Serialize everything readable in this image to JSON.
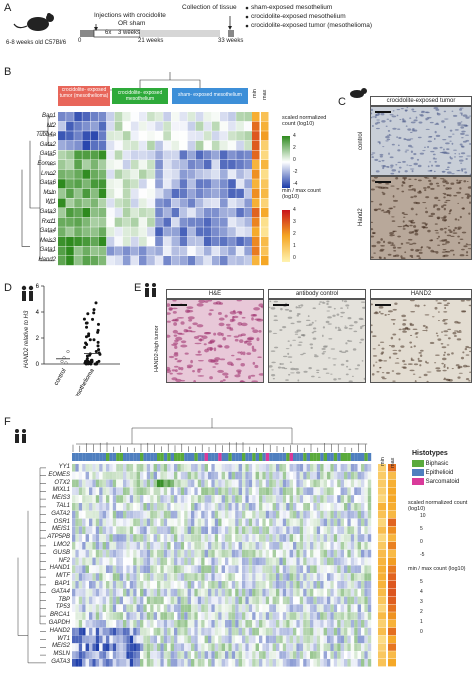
{
  "panels": {
    "A": {
      "label": "A",
      "age": "6-8 weeks old C57Bl/6",
      "injections": "Injections with crocidolite",
      "or_sham": "OR sham",
      "times": [
        "0",
        "6x",
        "3 weeks",
        "21 weeks",
        "33 weeks"
      ],
      "collection": "Collection of tissue",
      "outcomes": [
        "sham-exposed mesothelium",
        "crocidolite-exposed mesothelium",
        "crocidolite-exposed tumor (mesothelioma)"
      ]
    },
    "B": {
      "label": "B",
      "groups": [
        {
          "name": "crocidolite- exposed tumor (mesothelioma)",
          "color": "#e8665a"
        },
        {
          "name": "crocidolite- exposed mesothelium",
          "color": "#2eaa3a"
        },
        {
          "name": "sham- exposed mesothelium",
          "color": "#3d8fd8"
        }
      ],
      "minmax": [
        "min",
        "max"
      ],
      "legend1_title": "scaled normalized count (log10)",
      "legend1_ticks": [
        "4",
        "2",
        "0",
        "-2",
        "-4"
      ],
      "legend2_title": "min / max count (log10)",
      "legend2_ticks": [
        "4",
        "3",
        "2",
        "1",
        "0"
      ]
    },
    "C": {
      "label": "C",
      "title": "crocidolite-exposed tumor",
      "rows": [
        "control",
        "Hand2"
      ]
    },
    "D": {
      "label": "D",
      "ylabel": "HAND2 relative to H3",
      "yticks": [
        "6",
        "4",
        "2",
        "0"
      ],
      "xcats": [
        "control",
        "mesothelioma"
      ]
    },
    "E": {
      "label": "E",
      "titles": [
        "H&E",
        "antibody control",
        "HAND2"
      ],
      "side": "HAND2-high tumor"
    },
    "F": {
      "label": "F",
      "histotypes_title": "Histotypes",
      "histotypes": [
        {
          "name": "Biphasic",
          "color": "#5aaa3c"
        },
        {
          "name": "Epithelioid",
          "color": "#4f7fbf"
        },
        {
          "name": "Sarcomatoid",
          "color": "#d93a9a"
        }
      ],
      "minmax": [
        "min",
        "max"
      ],
      "legend1_title": "scaled normalized count (log10)",
      "legend1_ticks": [
        "10",
        "5",
        "0",
        "-5"
      ],
      "legend2_title": "min / max count (log10)",
      "legend2_ticks": [
        "5",
        "4",
        "3",
        "2",
        "1",
        "0"
      ]
    }
  },
  "genes_B": [
    "Bap1",
    "Nf2",
    "Tubb4a",
    "Gata2",
    "Gata5",
    "Eomes",
    "Lmo2",
    "Gata6",
    "Msln",
    "Wt1",
    "Gata3",
    "Rxrf1",
    "Gata4",
    "Meis3",
    "Gata1",
    "Hand2"
  ],
  "genes_F": [
    "YY1",
    "EOMES",
    "OTX2",
    "MIXL1",
    "MEIS3",
    "TAL1",
    "GATA2",
    "OSR1",
    "MEIS1",
    "ATP5PB",
    "LMO2",
    "GUSB",
    "NF2",
    "HAND1",
    "MITF",
    "BAP1",
    "GATA4",
    "TBP",
    "TP53",
    "BRCA1",
    "GAPDH",
    "HAND2",
    "WT1",
    "MEIS2",
    "MSLN",
    "GATA3"
  ]
}
